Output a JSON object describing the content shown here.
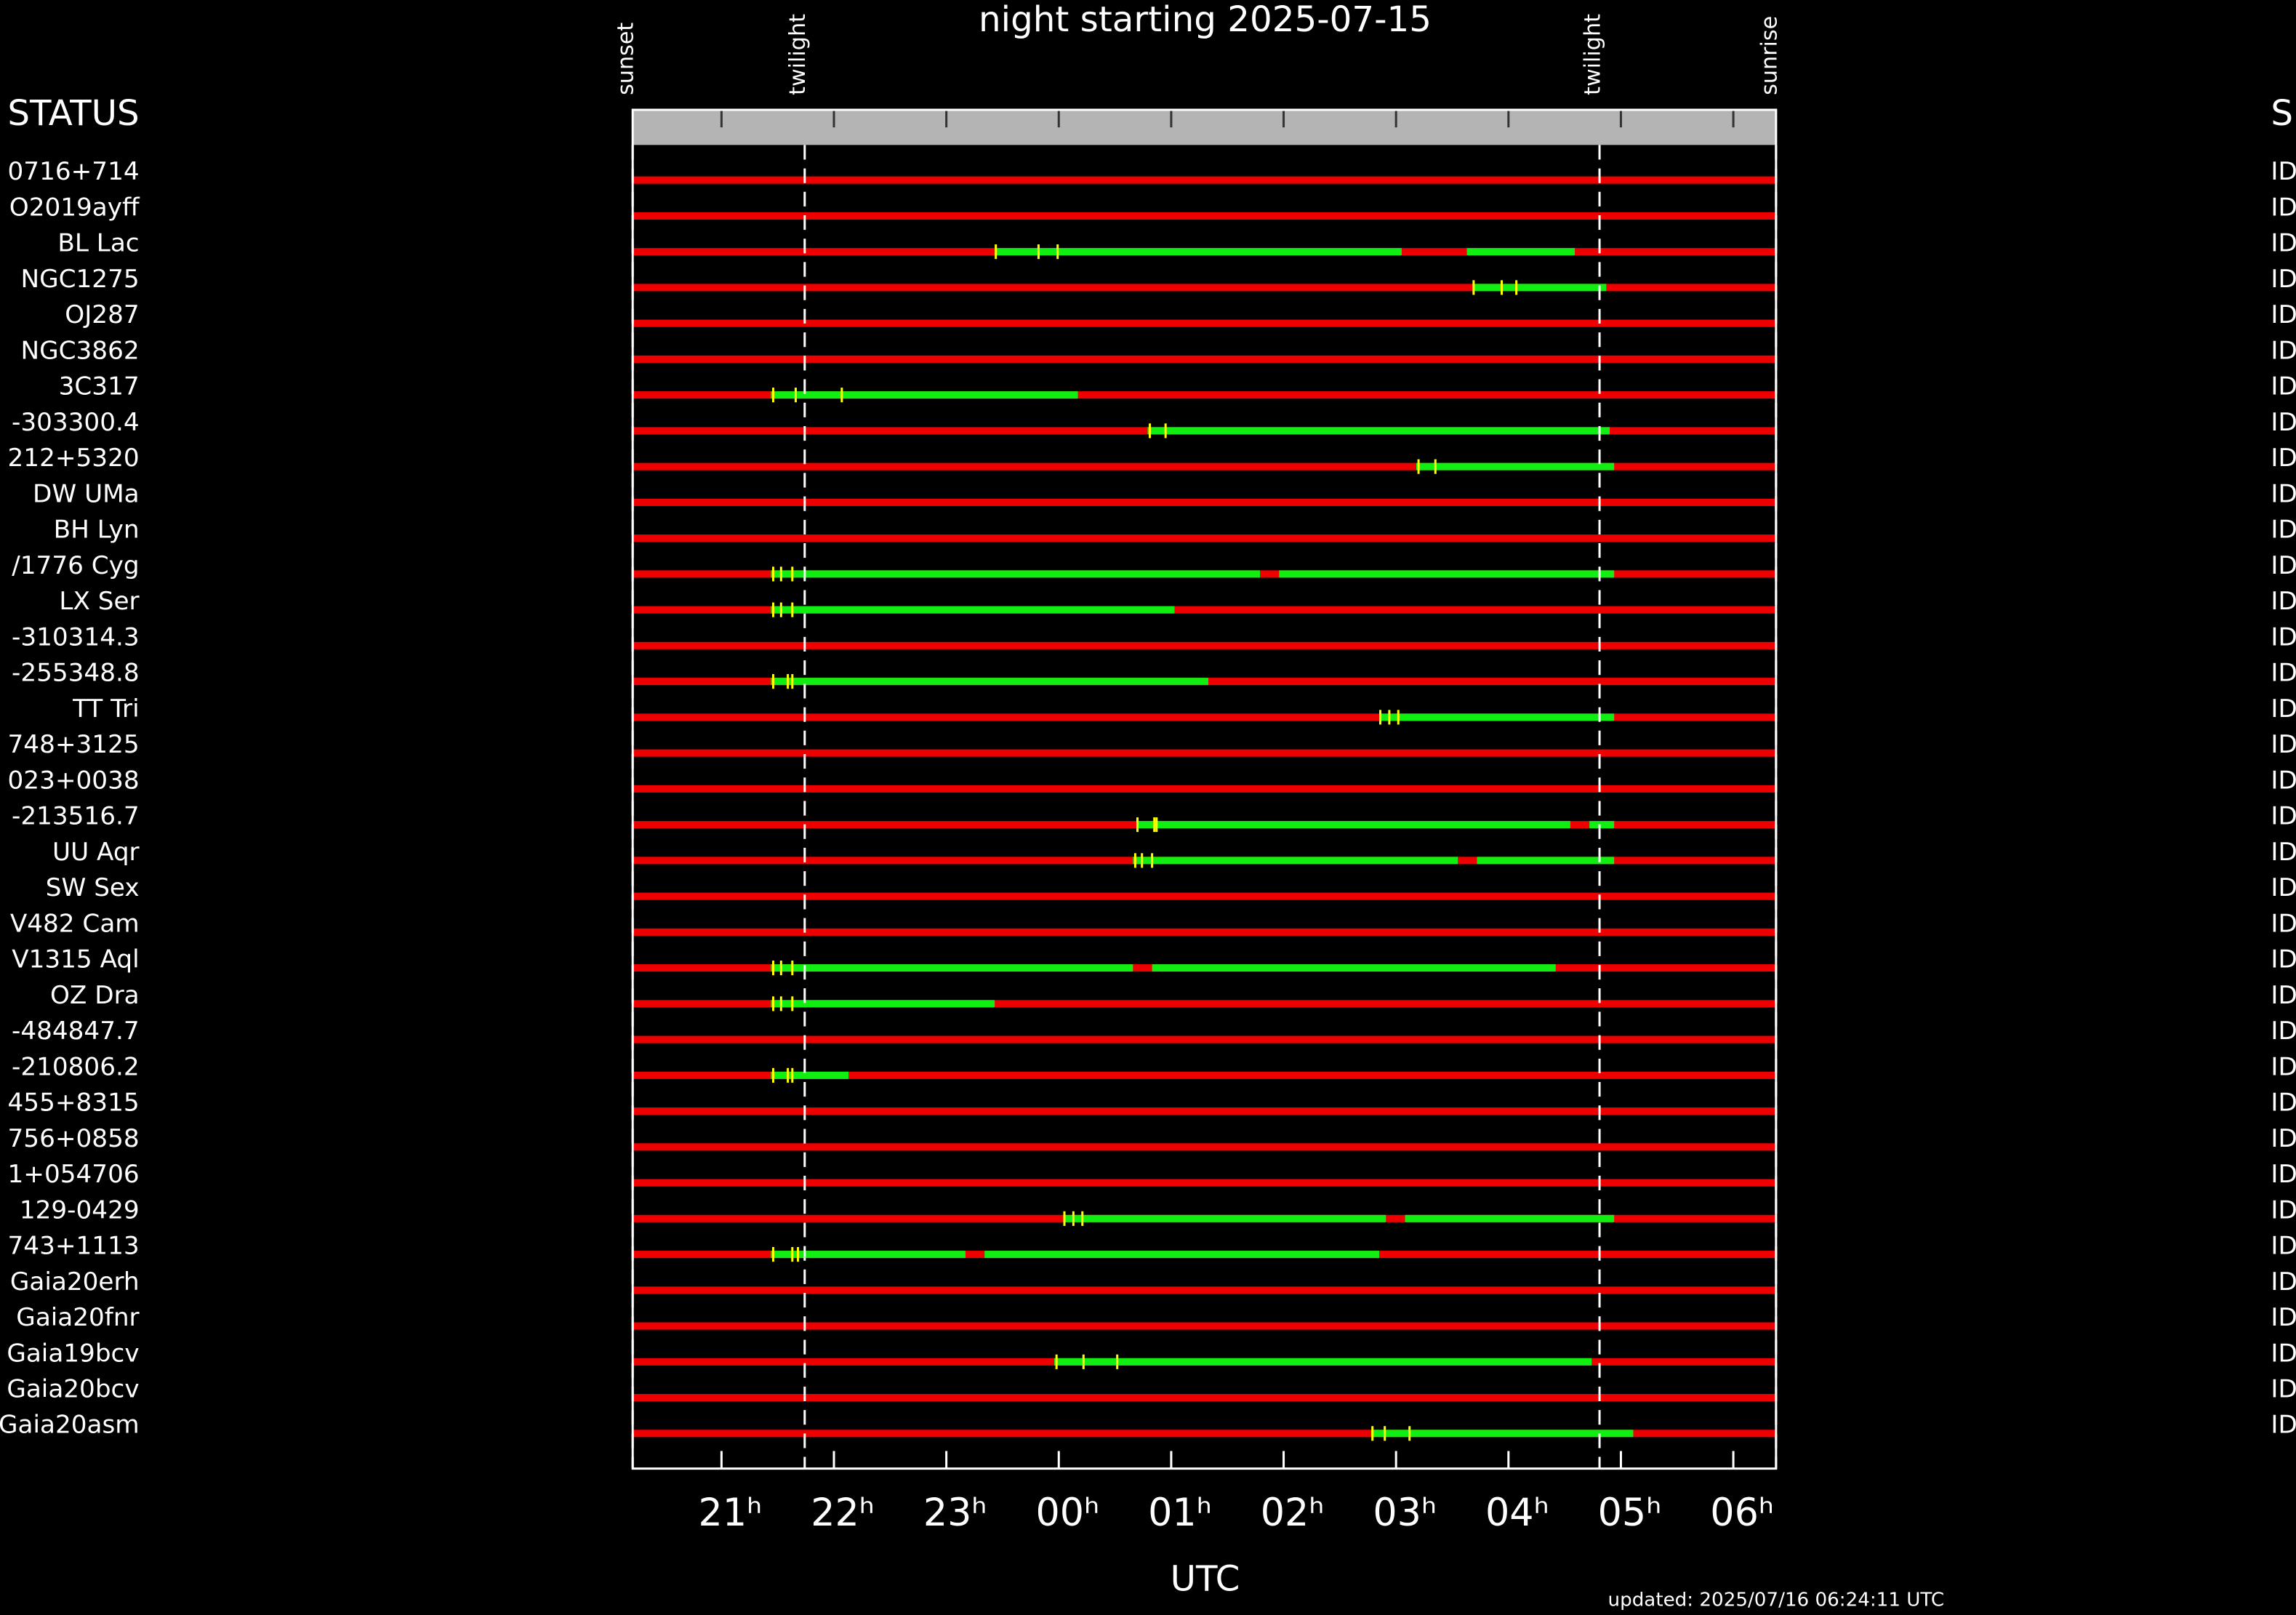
{
  "chart_data": {
    "type": "timeline",
    "title": "night starting 2025-07-15",
    "xlabel": "UTC",
    "updated": "updated: 2025/07/16 06:24:11 UTC",
    "status_header_left": "STATUS",
    "status_header_right": "S",
    "xlim": [
      20.21,
      30.38
    ],
    "xticks": [
      {
        "value": 21,
        "label": "21ʰ"
      },
      {
        "value": 22,
        "label": "22ʰ"
      },
      {
        "value": 23,
        "label": "23ʰ"
      },
      {
        "value": 24,
        "label": "00ʰ"
      },
      {
        "value": 25,
        "label": "01ʰ"
      },
      {
        "value": 26,
        "label": "02ʰ"
      },
      {
        "value": 27,
        "label": "03ʰ"
      },
      {
        "value": 28,
        "label": "04ʰ"
      },
      {
        "value": 29,
        "label": "05ʰ"
      },
      {
        "value": 30,
        "label": "06ʰ"
      }
    ],
    "events": [
      {
        "label": "sunset",
        "value": 20.21
      },
      {
        "label": "twilight",
        "value": 21.74
      },
      {
        "label": "twilight",
        "value": 28.81
      },
      {
        "label": "sunrise",
        "value": 30.38
      }
    ],
    "colors": {
      "unobservable": "#ee0000",
      "window": "#11ee11",
      "marker": "#ffff00",
      "header": "#b4b4b4"
    },
    "rows": [
      {
        "name": "0716+714",
        "status": "ID",
        "windows": [],
        "markers": []
      },
      {
        "name": "O2019ayff",
        "status": "ID",
        "windows": [],
        "markers": []
      },
      {
        "name": "BL Lac",
        "status": "ID",
        "windows": [
          [
            23.44,
            27.05
          ],
          [
            27.63,
            28.59
          ]
        ],
        "markers": [
          23.44,
          23.82,
          23.99
        ]
      },
      {
        "name": "NGC1275",
        "status": "ID",
        "windows": [
          [
            27.68,
            28.87
          ]
        ],
        "markers": [
          27.69,
          27.94,
          28.07
        ]
      },
      {
        "name": "OJ287",
        "status": "ID",
        "windows": [],
        "markers": []
      },
      {
        "name": "NGC3862",
        "status": "ID",
        "windows": [],
        "markers": []
      },
      {
        "name": "3C317",
        "status": "ID",
        "windows": [
          [
            21.44,
            24.17
          ]
        ],
        "markers": [
          21.46,
          21.66,
          22.07
        ]
      },
      {
        "name": "-303300.4",
        "status": "ID",
        "windows": [
          [
            24.79,
            28.9
          ]
        ],
        "markers": [
          24.81,
          24.95
        ]
      },
      {
        "name": "212+5320",
        "status": "ID",
        "windows": [
          [
            27.18,
            28.94
          ]
        ],
        "markers": [
          27.2,
          27.35
        ]
      },
      {
        "name": "DW UMa",
        "status": "ID",
        "windows": [],
        "markers": []
      },
      {
        "name": "BH Lyn",
        "status": "ID",
        "windows": [],
        "markers": []
      },
      {
        "name": "/1776 Cyg",
        "status": "ID",
        "windows": [
          [
            21.44,
            25.79
          ],
          [
            25.96,
            28.94
          ]
        ],
        "markers": [
          21.46,
          21.53,
          21.63
        ]
      },
      {
        "name": "LX Ser",
        "status": "ID",
        "windows": [
          [
            21.44,
            25.03
          ]
        ],
        "markers": [
          21.46,
          21.53,
          21.63
        ]
      },
      {
        "name": "-310314.3",
        "status": "ID",
        "windows": [],
        "markers": []
      },
      {
        "name": "-255348.8",
        "status": "ID",
        "windows": [
          [
            21.44,
            25.33
          ]
        ],
        "markers": [
          21.46,
          21.59,
          21.63
        ]
      },
      {
        "name": "TT Tri",
        "status": "ID",
        "windows": [
          [
            26.85,
            28.94
          ]
        ],
        "markers": [
          26.86,
          26.94,
          27.02
        ]
      },
      {
        "name": "748+3125",
        "status": "ID",
        "windows": [],
        "markers": []
      },
      {
        "name": "023+0038",
        "status": "ID",
        "windows": [],
        "markers": []
      },
      {
        "name": "-213516.7",
        "status": "ID",
        "windows": [
          [
            24.69,
            28.55
          ],
          [
            28.72,
            28.94
          ]
        ],
        "markers": [
          24.7,
          24.85,
          24.87
        ]
      },
      {
        "name": "UU Aqr",
        "status": "ID",
        "windows": [
          [
            24.66,
            27.55
          ],
          [
            27.72,
            28.94
          ]
        ],
        "markers": [
          24.68,
          24.74,
          24.83
        ]
      },
      {
        "name": "SW Sex",
        "status": "ID",
        "windows": [],
        "markers": []
      },
      {
        "name": "V482 Cam",
        "status": "ID",
        "windows": [],
        "markers": []
      },
      {
        "name": "V1315 Aql",
        "status": "ID",
        "windows": [
          [
            21.44,
            24.66
          ],
          [
            24.83,
            28.42
          ]
        ],
        "markers": [
          21.46,
          21.53,
          21.63
        ]
      },
      {
        "name": "OZ Dra",
        "status": "ID",
        "windows": [
          [
            21.44,
            23.43
          ]
        ],
        "markers": [
          21.46,
          21.53,
          21.63
        ]
      },
      {
        "name": "-484847.7",
        "status": "ID",
        "windows": [],
        "markers": []
      },
      {
        "name": "-210806.2",
        "status": "ID",
        "windows": [
          [
            21.44,
            22.13
          ]
        ],
        "markers": [
          21.46,
          21.59,
          21.63
        ]
      },
      {
        "name": "455+8315",
        "status": "ID",
        "windows": [],
        "markers": []
      },
      {
        "name": "756+0858",
        "status": "ID",
        "windows": [],
        "markers": []
      },
      {
        "name": "1+054706",
        "status": "ID",
        "windows": [],
        "markers": []
      },
      {
        "name": "129-0429",
        "status": "ID",
        "windows": [
          [
            24.04,
            26.91
          ],
          [
            27.08,
            28.94
          ]
        ],
        "markers": [
          24.05,
          24.13,
          24.21
        ]
      },
      {
        "name": "743+1113",
        "status": "ID",
        "windows": [
          [
            21.44,
            23.17
          ],
          [
            23.34,
            26.85
          ]
        ],
        "markers": [
          21.46,
          21.63,
          21.68
        ]
      },
      {
        "name": "Gaia20erh",
        "status": "ID",
        "windows": [],
        "markers": []
      },
      {
        "name": "Gaia20fnr",
        "status": "ID",
        "windows": [],
        "markers": []
      },
      {
        "name": "Gaia19bcv",
        "status": "ID",
        "windows": [
          [
            23.96,
            28.74
          ]
        ],
        "markers": [
          23.98,
          24.22,
          24.52
        ]
      },
      {
        "name": "Gaia20bcv",
        "status": "ID",
        "windows": [],
        "markers": []
      },
      {
        "name": "Gaia20asm",
        "status": "ID",
        "windows": [
          [
            26.78,
            29.11
          ]
        ],
        "markers": [
          26.79,
          26.9,
          27.12
        ]
      }
    ]
  }
}
